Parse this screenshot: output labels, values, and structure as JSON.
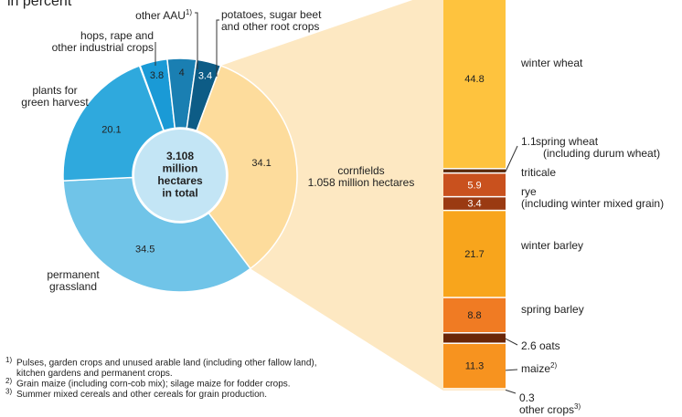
{
  "subtitle": "in percent",
  "footnotes": [
    {
      "mark": "1)",
      "lines": [
        "Pulses, garden crops and unused arable land (including other fallow land),",
        "kitchen gardens and permanent crops."
      ]
    },
    {
      "mark": "2)",
      "lines": [
        "Grain maize (including corn-cob mix); silage maize for fodder crops."
      ]
    },
    {
      "mark": "3)",
      "lines": [
        "Summer mixed cereals and other cereals for grain production."
      ]
    }
  ],
  "chart_data": [
    {
      "type": "donut",
      "center_label": [
        "3.108",
        "million",
        "hectares",
        "in total"
      ],
      "categories": [
        [
          "hops, rape and",
          "other industrial crops"
        ],
        [
          "other AAU"
        ],
        [
          "potatoes, sugar beet",
          "and other root crops"
        ],
        [
          "cornfields",
          "1.058 million hectares"
        ],
        [
          "permanent",
          "grassland"
        ],
        [
          "plants for",
          "green harvest"
        ]
      ],
      "footnote_refs": {
        "1": "1)"
      },
      "values": [
        3.8,
        4.0,
        3.4,
        34.1,
        34.5,
        20.1
      ],
      "colors": [
        "#1a9ad6",
        "#1a7fb2",
        "#0d5c86",
        "#fddc9c",
        "#70c4e8",
        "#2fa9dd"
      ]
    },
    {
      "type": "stacked_bar",
      "categories": [
        "winter wheat",
        "spring wheat",
        "triticale",
        "rye",
        "winter barley",
        "spring barley",
        "oats",
        "maize",
        "other crops"
      ],
      "category_sublabels": {
        "1": "(including durum wheat)",
        "3": "(including winter mixed grain)"
      },
      "footnote_refs": {
        "7": "2)",
        "8": "3)"
      },
      "values": [
        44.8,
        1.1,
        5.9,
        3.4,
        21.7,
        8.8,
        2.6,
        11.3,
        0.3
      ],
      "colors": [
        "#fec33e",
        "#5a2a0c",
        "#c9511e",
        "#9a3a12",
        "#f8a51c",
        "#f07b23",
        "#6a2608",
        "#f7931f",
        "#fdd08e"
      ]
    }
  ]
}
